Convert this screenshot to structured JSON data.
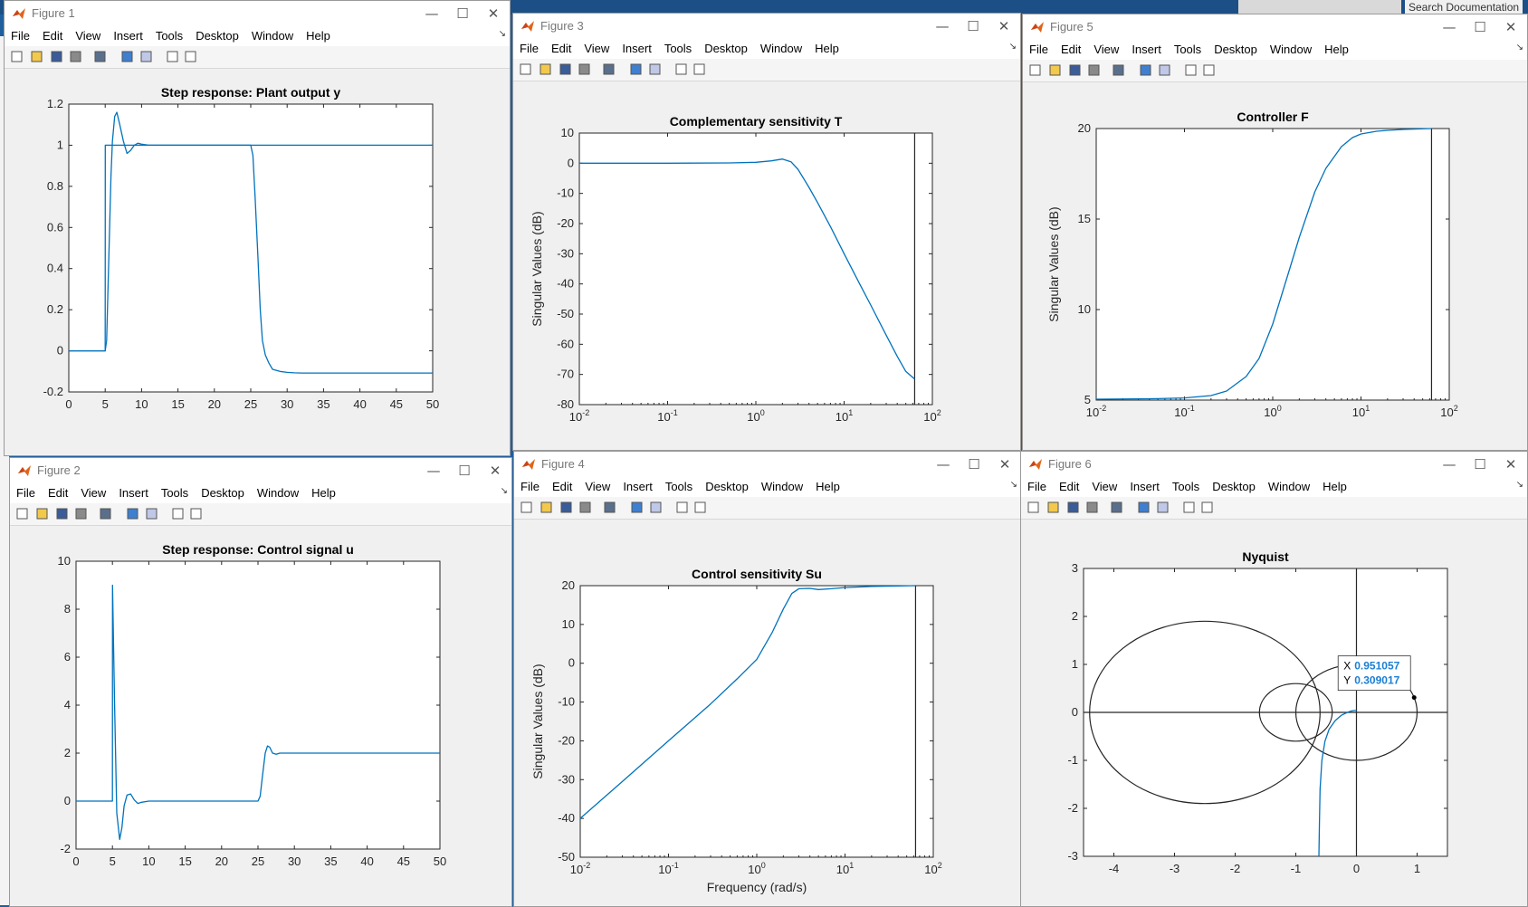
{
  "desktop": {
    "search_placeholder": "Search Documentation"
  },
  "menu": [
    "File",
    "Edit",
    "View",
    "Insert",
    "Tools",
    "Desktop",
    "Window",
    "Help"
  ],
  "controls": {
    "minimize": "—",
    "maximize": "☐",
    "close": "✕"
  },
  "windows": {
    "fig1": {
      "title": "Figure 1",
      "plot_title": "Step response: Plant output y"
    },
    "fig2": {
      "title": "Figure 2",
      "plot_title": "Step response: Control signal u"
    },
    "fig3": {
      "title": "Figure 3",
      "plot_title": "Complementary sensitivity T",
      "ylabel": "Singular Values (dB)"
    },
    "fig4": {
      "title": "Figure 4",
      "plot_title": "Control sensitivity Su",
      "ylabel": "Singular Values (dB)",
      "xlabel": "Frequency (rad/s)"
    },
    "fig5": {
      "title": "Figure 5",
      "plot_title": "Controller F",
      "ylabel": "Singular Values (dB)"
    },
    "fig6": {
      "title": "Figure 6",
      "plot_title": "Nyquist"
    }
  },
  "datatip": {
    "x_label": "X",
    "x_value": "0.951057",
    "y_label": "Y",
    "y_value": "0.309017"
  },
  "colors": {
    "line": "#0072BD",
    "datatip_text": "#1a7fd4",
    "axes_bg": "#ffffff",
    "figure_bg": "#f0f0f0"
  },
  "chart_data": [
    {
      "id": "fig1",
      "type": "line",
      "xlim": [
        0,
        50
      ],
      "ylim": [
        -0.2,
        1.2
      ],
      "xticks": [
        0,
        5,
        10,
        15,
        20,
        25,
        30,
        35,
        40,
        45,
        50
      ],
      "yticks": [
        -0.2,
        0,
        0.2,
        0.4,
        0.6,
        0.8,
        1,
        1.2
      ],
      "series": [
        {
          "color": "#0072BD",
          "x": [
            0,
            5,
            5.01,
            50
          ],
          "y": [
            0,
            0,
            1,
            1
          ]
        },
        {
          "color": "#0072BD",
          "x": [
            0,
            5,
            5.2,
            5.5,
            5.8,
            6,
            6.3,
            6.6,
            7,
            7.5,
            8,
            8.5,
            9,
            9.5,
            10,
            11,
            12,
            15,
            20,
            25,
            25.3,
            25.6,
            26,
            26.3,
            26.6,
            27,
            27.5,
            28,
            29,
            30,
            31,
            32,
            35,
            40,
            45,
            50
          ],
          "y": [
            0,
            0,
            0.05,
            0.45,
            0.85,
            1.02,
            1.14,
            1.16,
            1.1,
            1.02,
            0.96,
            0.975,
            1.0,
            1.01,
            1.005,
            1.0,
            1.0,
            1.0,
            1.0,
            1.0,
            0.95,
            0.75,
            0.45,
            0.2,
            0.05,
            -0.02,
            -0.06,
            -0.09,
            -0.1,
            -0.105,
            -0.107,
            -0.108,
            -0.108,
            -0.108,
            -0.108,
            -0.108
          ]
        }
      ]
    },
    {
      "id": "fig2",
      "type": "line",
      "xlim": [
        0,
        50
      ],
      "ylim": [
        -2,
        10
      ],
      "xticks": [
        0,
        5,
        10,
        15,
        20,
        25,
        30,
        35,
        40,
        45,
        50
      ],
      "yticks": [
        -2,
        0,
        2,
        4,
        6,
        8,
        10
      ],
      "series": [
        {
          "color": "#0072BD",
          "x": [
            0,
            5,
            5.01,
            5.3,
            5.6,
            6,
            6.3,
            6.6,
            7,
            7.5,
            8,
            8.5,
            9,
            10,
            12,
            15,
            20,
            25,
            25.3,
            25.6,
            26,
            26.3,
            26.6,
            27,
            27.5,
            28,
            29,
            30,
            35,
            40,
            45,
            50
          ],
          "y": [
            0,
            0,
            9.0,
            4.0,
            -0.5,
            -1.6,
            -1.1,
            -0.2,
            0.25,
            0.3,
            0.05,
            -0.1,
            -0.05,
            0,
            0,
            0,
            0,
            0,
            0.2,
            1.0,
            2.0,
            2.3,
            2.25,
            2.0,
            1.95,
            2.0,
            2.0,
            2.0,
            2.0,
            2.0,
            2.0,
            2.0
          ]
        }
      ]
    },
    {
      "id": "fig3",
      "type": "line",
      "xscale": "log",
      "xlim": [
        0.01,
        100
      ],
      "ylim": [
        -80,
        10
      ],
      "xticks": [
        0.01,
        0.1,
        1,
        10,
        100
      ],
      "yticks": [
        -80,
        -70,
        -60,
        -50,
        -40,
        -30,
        -20,
        -10,
        0,
        10
      ],
      "vline": 63,
      "series": [
        {
          "color": "#0072BD",
          "x": [
            0.01,
            0.1,
            0.5,
            1,
            1.5,
            2,
            2.5,
            3,
            4,
            5,
            7,
            10,
            15,
            20,
            30,
            40,
            50,
            63
          ],
          "y": [
            0,
            0,
            0.1,
            0.3,
            0.8,
            1.4,
            0.5,
            -2,
            -8,
            -13,
            -21,
            -30,
            -40,
            -47,
            -57,
            -64,
            -69,
            -71.5
          ]
        }
      ]
    },
    {
      "id": "fig4",
      "type": "line",
      "xscale": "log",
      "xlim": [
        0.01,
        100
      ],
      "ylim": [
        -50,
        20
      ],
      "xticks": [
        0.01,
        0.1,
        1,
        10,
        100
      ],
      "yticks": [
        -50,
        -40,
        -30,
        -20,
        -10,
        0,
        10,
        20
      ],
      "vline": 63,
      "series": [
        {
          "color": "#0072BD",
          "x": [
            0.01,
            0.03,
            0.1,
            0.3,
            0.6,
            1,
            1.5,
            2,
            2.5,
            3,
            4,
            5,
            7,
            10,
            20,
            40,
            63
          ],
          "y": [
            -40,
            -30.5,
            -20,
            -10.5,
            -4,
            1,
            8,
            14,
            18,
            19.2,
            19.3,
            19,
            19.2,
            19.5,
            19.8,
            19.9,
            20
          ]
        }
      ]
    },
    {
      "id": "fig5",
      "type": "line",
      "xscale": "log",
      "xlim": [
        0.01,
        100
      ],
      "ylim": [
        5,
        20
      ],
      "xticks": [
        0.01,
        0.1,
        1,
        10,
        100
      ],
      "yticks": [
        5,
        10,
        15,
        20
      ],
      "vline": 63,
      "series": [
        {
          "color": "#0072BD",
          "x": [
            0.01,
            0.05,
            0.1,
            0.2,
            0.3,
            0.5,
            0.7,
            1,
            1.5,
            2,
            3,
            4,
            6,
            8,
            10,
            15,
            20,
            30,
            63
          ],
          "y": [
            5.05,
            5.08,
            5.12,
            5.25,
            5.5,
            6.3,
            7.3,
            9.2,
            12,
            14,
            16.5,
            17.8,
            19,
            19.5,
            19.7,
            19.85,
            19.9,
            19.95,
            20
          ]
        }
      ]
    },
    {
      "id": "fig6",
      "type": "line",
      "xlim": [
        -4.5,
        1.5
      ],
      "ylim": [
        -3,
        3
      ],
      "xticks": [
        -4,
        -3,
        -2,
        -1,
        0,
        1
      ],
      "yticks": [
        -3,
        -2,
        -1,
        0,
        1,
        2,
        3
      ],
      "circles": [
        {
          "cx": -2.5,
          "cy": 0,
          "r": 1.9
        },
        {
          "cx": -1.0,
          "cy": 0,
          "r": 0.6
        },
        {
          "cx": 0,
          "cy": 0,
          "r": 1.0
        }
      ],
      "datatip_point": [
        0.951057,
        0.309017
      ],
      "series": [
        {
          "color": "#0072BD",
          "x": [
            -0.62,
            -0.61,
            -0.6,
            -0.57,
            -0.52,
            -0.45,
            -0.35,
            -0.25,
            -0.15,
            -0.08,
            -0.03,
            0
          ],
          "y": [
            -3,
            -2.3,
            -1.6,
            -1.0,
            -0.6,
            -0.35,
            -0.17,
            -0.06,
            0.0,
            0.03,
            0.04,
            0.04
          ]
        }
      ]
    }
  ]
}
